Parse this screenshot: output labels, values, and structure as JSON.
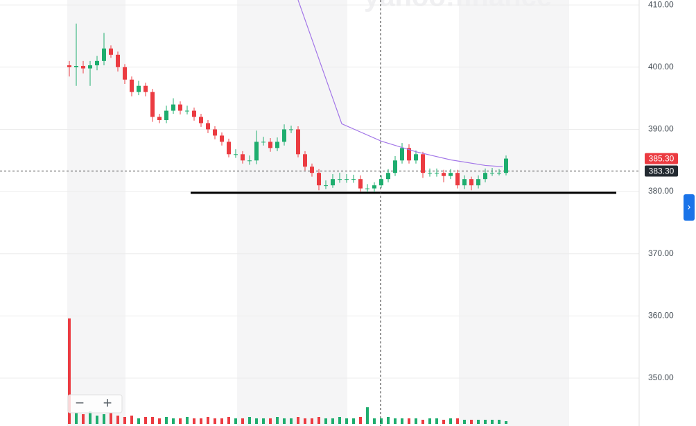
{
  "chart_data": {
    "type": "candlestick",
    "watermark": "yahoo!finance",
    "zoom_out": "−",
    "zoom_in": "+",
    "expand": "›",
    "xlim": [
      -10,
      82.2
    ],
    "ylim": [
      342.3,
      410.8
    ],
    "yticks": [
      {
        "value": 410,
        "label": "410.00"
      },
      {
        "value": 400,
        "label": "400.00"
      },
      {
        "value": 390,
        "label": "390.00"
      },
      {
        "value": 380,
        "label": "380.00"
      },
      {
        "value": 370,
        "label": "370.00"
      },
      {
        "value": 360,
        "label": "360.00"
      },
      {
        "value": 350,
        "label": "350.00"
      }
    ],
    "grid": true,
    "up_color": "#1ead6e",
    "down_color": "#eb3b41",
    "open": [
      400.3,
      400,
      400.2,
      399.8,
      400.3,
      401,
      403,
      402,
      400,
      398,
      396,
      397,
      396,
      392,
      391.5,
      393,
      394,
      393,
      393,
      392,
      391,
      390,
      389,
      388,
      386,
      386,
      385,
      385,
      388,
      388,
      387,
      388,
      390,
      390,
      386,
      384,
      383,
      381,
      381,
      382,
      382,
      382,
      382,
      380.5,
      380.5,
      381,
      382,
      383,
      385,
      387,
      385,
      386,
      383,
      383,
      383,
      382.5,
      383,
      381,
      382,
      381,
      382,
      383,
      383,
      383
    ],
    "high": [
      401,
      407,
      401,
      401,
      401.8,
      405.5,
      403.5,
      402.5,
      400.5,
      398.5,
      397.8,
      397.5,
      396.5,
      392.5,
      393.8,
      395,
      394.5,
      393.8,
      393.5,
      392.5,
      391.5,
      390.5,
      389.5,
      388.5,
      386.8,
      386.5,
      385.8,
      389.8,
      388.8,
      388.6,
      388.7,
      390.8,
      390.6,
      390.5,
      386.5,
      384.5,
      383.6,
      381.8,
      382.8,
      383,
      382.8,
      382.7,
      382.6,
      381.2,
      381.5,
      382.6,
      383.6,
      385.7,
      387.8,
      387.6,
      386.6,
      386.4,
      383.7,
      383.7,
      383.5,
      383.6,
      383.5,
      382.6,
      382.4,
      382.6,
      383.7,
      383.8,
      383.6,
      385.8
    ],
    "low": [
      398.5,
      397,
      399,
      397,
      399.5,
      400.3,
      401.5,
      399.3,
      397.3,
      395.3,
      395.5,
      395.3,
      391.2,
      391,
      391,
      392.5,
      392.4,
      392.4,
      391.4,
      390.4,
      389.4,
      388.4,
      387.4,
      385.5,
      385.4,
      384.5,
      384.3,
      384.4,
      387.4,
      386.4,
      386.5,
      387.4,
      389.4,
      385.5,
      383.4,
      382.4,
      380.2,
      380.4,
      380.6,
      381.4,
      381.4,
      381.4,
      380,
      379.9,
      379.9,
      380.6,
      381.5,
      382.5,
      384.5,
      384.5,
      384.5,
      382.2,
      382.4,
      382.4,
      381.5,
      382,
      380.5,
      380.4,
      380.2,
      380.5,
      381.5,
      382.5,
      382.6,
      382.6
    ],
    "close": [
      400,
      400.2,
      399.8,
      400.3,
      401,
      403,
      402,
      400,
      398,
      396,
      397,
      396,
      392,
      391.5,
      393,
      394,
      393,
      393,
      392,
      391,
      390,
      389,
      388,
      386,
      386,
      385,
      385,
      388,
      388,
      387,
      388,
      390,
      390,
      386,
      384,
      383,
      381,
      381,
      382,
      382,
      382,
      382,
      380.5,
      380.5,
      381,
      382,
      383,
      385,
      387,
      385,
      386,
      383,
      383,
      383,
      382.5,
      383,
      381,
      382,
      381,
      382,
      383,
      383,
      383,
      385.3
    ],
    "volume": [
      76,
      8,
      7,
      9,
      6,
      7,
      8,
      6,
      5,
      6,
      4,
      5,
      5,
      4,
      5,
      4,
      4,
      5,
      4,
      4,
      5,
      4,
      4,
      5,
      4,
      4,
      5,
      4,
      4,
      4,
      5,
      4,
      4,
      5,
      4,
      4,
      5,
      4,
      4,
      5,
      4,
      4,
      5,
      12,
      4,
      4,
      5,
      4,
      4,
      4,
      4,
      3,
      4,
      4,
      3,
      4,
      4,
      3,
      3,
      3,
      3,
      3,
      3,
      2
    ],
    "volume_lim": [
      0,
      100
    ],
    "moving_average": {
      "color": "#a377e8",
      "x": [
        33,
        39.3,
        45,
        50,
        55,
        60,
        62.5
      ],
      "values": [
        410.8,
        390.9,
        388.1,
        386.4,
        385.1,
        384.2,
        384.0
      ]
    },
    "last_price": {
      "value": 385.3,
      "label": "385.30",
      "color": "#eb3b41"
    },
    "crosshair_price": {
      "value": 383.3,
      "label": "383.30",
      "color": "#232a31"
    },
    "crosshair_x": 44.9,
    "support_line": {
      "value": 379.8,
      "x": [
        17.5,
        78.9
      ],
      "color": "#000000"
    }
  }
}
